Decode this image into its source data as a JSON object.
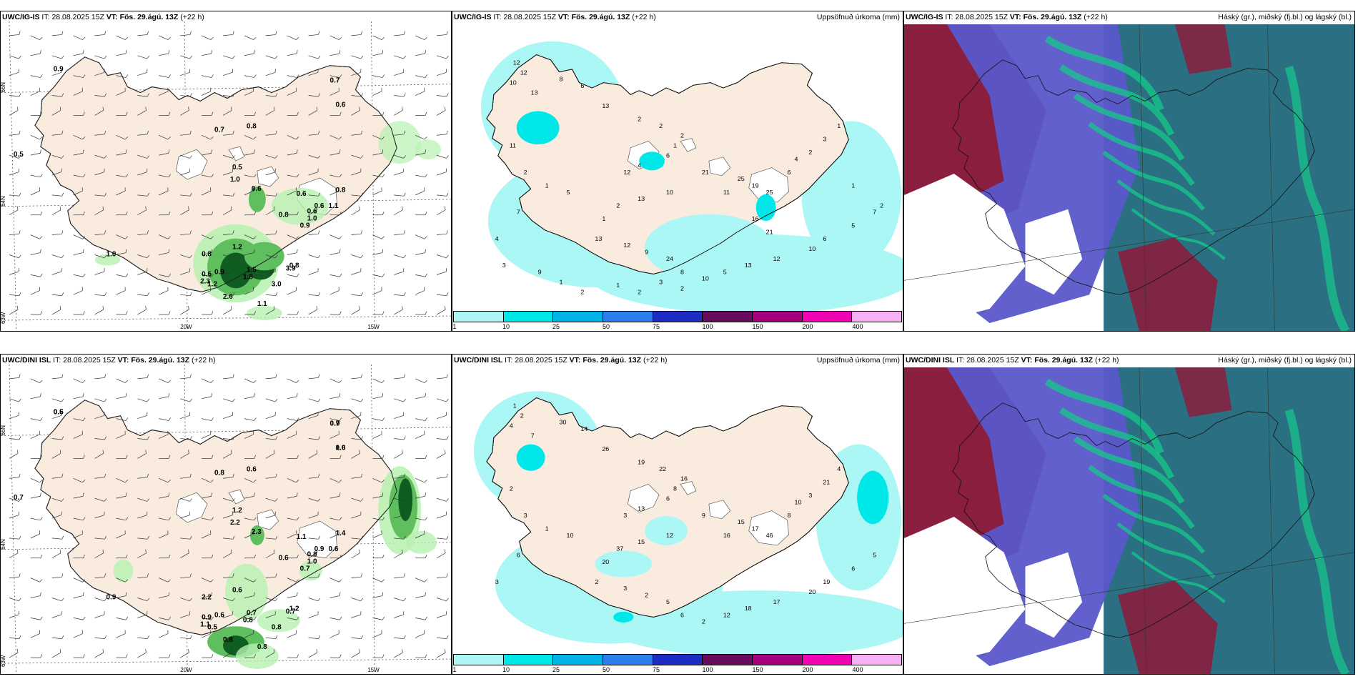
{
  "panels": [
    {
      "id": "p1",
      "header": {
        "model": "UWC/IG-IS",
        "it_label": "IT:",
        "it": "28.08.2025 15Z",
        "vt_label": "VT:",
        "vt": "Fös. 29.ágú. 13Z",
        "lead": "(+22 h)",
        "right": ""
      },
      "values": [
        "0.9",
        "0.7",
        "0.6",
        "0.5",
        "0.7",
        "0.8",
        "0.5",
        "1.0",
        "0.6",
        "0.6",
        "0.6",
        "1.1",
        "0.8",
        "1.0",
        "0.9",
        "1.0",
        "0.8",
        "1.2",
        "0.9",
        "1.8",
        "1.5",
        "1.2",
        "2.3",
        "3.9",
        "3.0",
        "2.6",
        "0.8",
        "0.6",
        "1.1",
        "0.6",
        "0.8"
      ],
      "axis": {
        "lat_top": "66N",
        "lat_mid": "64N",
        "lat_bot": "63W",
        "lon1": "20W",
        "lon2": "15W"
      }
    },
    {
      "id": "p2",
      "header": {
        "model": "UWC/IG-IS",
        "it_label": "IT:",
        "it": "28.08.2025 15Z",
        "vt_label": "VT:",
        "vt": "Fös. 29.ágú. 13Z",
        "lead": "(+22 h)",
        "right": "Uppsöfnuð úrkoma (mm)"
      },
      "values": [
        "12",
        "12",
        "10",
        "13",
        "8",
        "6",
        "13",
        "2",
        "2",
        "2",
        "1",
        "6",
        "4",
        "12",
        "21",
        "25",
        "19",
        "25",
        "11",
        "10",
        "13",
        "2",
        "1",
        "13",
        "12",
        "9",
        "24",
        "8",
        "10",
        "5",
        "13",
        "12",
        "10",
        "6",
        "5",
        "7",
        "6",
        "4",
        "2",
        "3",
        "1",
        "11",
        "2",
        "1",
        "5",
        "7",
        "4",
        "3",
        "9",
        "1",
        "2",
        "1",
        "2",
        "3",
        "2",
        "16",
        "21",
        "1",
        "2"
      ],
      "colorbar": {
        "labels": [
          "1",
          "10",
          "25",
          "50",
          "75",
          "100",
          "150",
          "200",
          "400"
        ],
        "colors": [
          "#aaf7f5",
          "#00e7ea",
          "#00b3e6",
          "#2e7fee",
          "#1d2dc4",
          "#6a0a5d",
          "#a3007f",
          "#f005b4",
          "#f7b0f3"
        ]
      }
    },
    {
      "id": "p3",
      "header": {
        "model": "UWC/IG-IS",
        "it_label": "IT:",
        "it": "28.08.2025 15Z",
        "vt_label": "VT:",
        "vt": "Fös. 29.ágú. 13Z",
        "lead": "(+22 h)",
        "right": "Háský (gr.), miðský (fj.bl.) og lágský (bl.)"
      }
    },
    {
      "id": "p4",
      "header": {
        "model": "UWC/DINI ISL",
        "it_label": "IT:",
        "it": "28.08.2025 15Z",
        "vt_label": "VT:",
        "vt": "Fös. 29.ágú. 13Z",
        "lead": "(+22 h)",
        "right": ""
      },
      "values": [
        "0.5",
        "0.7",
        "0.6",
        "0.7",
        "0.8",
        "0.6",
        "1.2",
        "2.2",
        "2.3",
        "1.1",
        "0.8",
        "0.6",
        "0.6",
        "1.0",
        "0.7",
        "0.9",
        "2.2",
        "0.6",
        "0.6",
        "0.8",
        "0.7",
        "0.5",
        "1.1",
        "0.7",
        "0.8",
        "0.8",
        "1.2",
        "0.9",
        "0.8",
        "0.9",
        "1.4",
        "0.6",
        "0.9",
        "1.0"
      ],
      "axis": {
        "lat_top": "66N",
        "lat_mid": "64N",
        "lat_bot": "63W",
        "lon1": "20W",
        "lon2": "15W"
      }
    },
    {
      "id": "p5",
      "header": {
        "model": "UWC/DINI ISL",
        "it_label": "IT:",
        "it": "28.08.2025 15Z",
        "vt_label": "VT:",
        "vt": "Fös. 29.ágú. 13Z",
        "lead": "(+22 h)",
        "right": "Uppsöfnuð úrkoma (mm)"
      },
      "values": [
        "1",
        "2",
        "4",
        "7",
        "30",
        "14",
        "26",
        "19",
        "22",
        "16",
        "8",
        "6",
        "13",
        "3",
        "9",
        "15",
        "17",
        "46",
        "16",
        "12",
        "15",
        "37",
        "20",
        "2",
        "3",
        "2",
        "5",
        "6",
        "2",
        "12",
        "18",
        "17",
        "20",
        "19",
        "6",
        "5",
        "8",
        "10",
        "3",
        "21",
        "4",
        "2",
        "3",
        "1",
        "10",
        "6",
        "3"
      ],
      "colorbar": {
        "labels": [
          "1",
          "10",
          "25",
          "50",
          "75",
          "100",
          "150",
          "200",
          "400"
        ],
        "colors": [
          "#aaf7f5",
          "#00e7ea",
          "#00b3e6",
          "#2e7fee",
          "#1d2dc4",
          "#6a0a5d",
          "#a3007f",
          "#f005b4",
          "#f7b0f3"
        ]
      }
    },
    {
      "id": "p6",
      "header": {
        "model": "UWC/DINI ISL",
        "it_label": "IT:",
        "it": "28.08.2025 15Z",
        "vt_label": "VT:",
        "vt": "Fös. 29.ágú. 13Z",
        "lead": "(+22 h)",
        "right": "Háský (gr.), miðský (fj.bl.) og lágský (bl.)"
      }
    }
  ],
  "colors": {
    "land": "#f9ecdf",
    "precip_light": "#b7f1b0",
    "precip_mid": "#5fbf5f",
    "precip_heavy": "#0f5d20",
    "accum_light": "#aaf7f5",
    "accum_mid": "#00e7ea",
    "cloud_high": "#2b6f82",
    "cloud_mid": "#5a57c9",
    "cloud_low": "#8a1e3e"
  }
}
